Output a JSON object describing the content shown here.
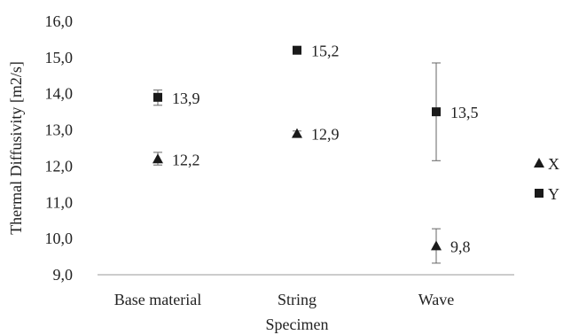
{
  "chart_data": {
    "type": "scatter",
    "title": "",
    "xlabel": "Specimen",
    "ylabel": "Thermal Diffusivity [m2/s]",
    "categories": [
      "Base material",
      "String",
      "Wave"
    ],
    "ylim": [
      9.0,
      16.0
    ],
    "yticks": [
      "9,0",
      "10,0",
      "11,0",
      "12,0",
      "13,0",
      "14,0",
      "15,0",
      "16,0"
    ],
    "grid": false,
    "legend_position": "right",
    "series": [
      {
        "name": "X",
        "marker": "triangle",
        "values": [
          12.2,
          12.9,
          9.8
        ],
        "labels": [
          "12,2",
          "12,9",
          "9,8"
        ],
        "error_low": [
          12.03,
          12.83,
          9.32
        ],
        "error_high": [
          12.38,
          12.97,
          10.27
        ]
      },
      {
        "name": "Y",
        "marker": "square",
        "values": [
          13.9,
          15.2,
          13.5
        ],
        "labels": [
          "13,9",
          "15,2",
          "13,5"
        ],
        "error_low": [
          13.68,
          15.13,
          12.15
        ],
        "error_high": [
          14.1,
          15.27,
          14.85
        ]
      }
    ],
    "colors": {
      "marker": "#1a1a1a",
      "error_bar": "#666666",
      "axis": "#999999"
    }
  }
}
